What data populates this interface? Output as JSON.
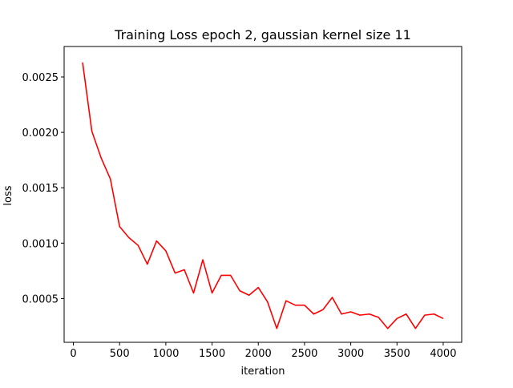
{
  "chart_data": {
    "type": "line",
    "title": "Training Loss epoch 2, gaussian kernel size 11",
    "xlabel": "iteration",
    "ylabel": "loss",
    "xlim": [
      -100,
      4200
    ],
    "ylim": [
      0.000105,
      0.002775
    ],
    "xticks": [
      0,
      500,
      1000,
      1500,
      2000,
      2500,
      3000,
      3500,
      4000
    ],
    "xtick_labels": [
      "0",
      "500",
      "1000",
      "1500",
      "2000",
      "2500",
      "3000",
      "3500",
      "4000"
    ],
    "yticks": [
      0.0005,
      0.001,
      0.0015,
      0.002,
      0.0025
    ],
    "ytick_labels": [
      "0.0005",
      "0.0010",
      "0.0015",
      "0.0020",
      "0.0025"
    ],
    "grid": false,
    "series": [
      {
        "color": "#ff0000",
        "x": [
          100,
          200,
          300,
          400,
          500,
          600,
          700,
          800,
          900,
          1000,
          1100,
          1200,
          1300,
          1400,
          1500,
          1600,
          1700,
          1800,
          1900,
          2000,
          2100,
          2200,
          2300,
          2400,
          2500,
          2600,
          2700,
          2800,
          2900,
          3000,
          3100,
          3200,
          3300,
          3400,
          3500,
          3600,
          3700,
          3800,
          3900,
          4000
        ],
        "y": [
          0.00263,
          0.00201,
          0.00177,
          0.00158,
          0.00115,
          0.00105,
          0.00098,
          0.00081,
          0.00102,
          0.00093,
          0.00073,
          0.00076,
          0.00055,
          0.00085,
          0.00055,
          0.00071,
          0.00071,
          0.00057,
          0.00053,
          0.0006,
          0.00047,
          0.00023,
          0.00048,
          0.00044,
          0.00044,
          0.00036,
          0.0004,
          0.00051,
          0.00036,
          0.00038,
          0.00035,
          0.00036,
          0.00033,
          0.00023,
          0.00032,
          0.00036,
          0.00023,
          0.00035,
          0.00036,
          0.00032
        ]
      }
    ]
  }
}
